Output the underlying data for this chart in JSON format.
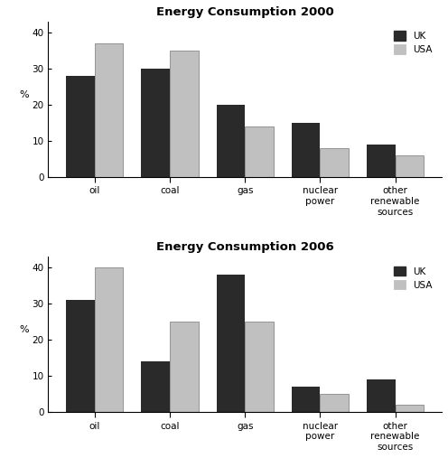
{
  "chart2000": {
    "title": "Energy Consumption 2000",
    "categories": [
      "oil",
      "coal",
      "gas",
      "nuclear\npower",
      "other\nrenewable\nsources"
    ],
    "uk": [
      28,
      30,
      20,
      15,
      9
    ],
    "usa": [
      37,
      35,
      14,
      8,
      6
    ]
  },
  "chart2006": {
    "title": "Energy Consumption 2006",
    "categories": [
      "oil",
      "coal",
      "gas",
      "nuclear\npower",
      "other\nrenewable\nsources"
    ],
    "uk": [
      31,
      14,
      38,
      7,
      9
    ],
    "usa": [
      40,
      25,
      25,
      5,
      2
    ]
  },
  "uk_color": "#2a2a2a",
  "usa_color": "#c0c0c0",
  "usa_edge_color": "#888888",
  "ylabel": "%",
  "ylim": [
    0,
    43
  ],
  "yticks": [
    0,
    10,
    20,
    30,
    40
  ],
  "bar_width": 0.38,
  "legend_labels": [
    "UK",
    "USA"
  ],
  "title_fontsize": 9.5,
  "tick_fontsize": 7.5,
  "label_fontsize": 8,
  "bg_color": "#ffffff"
}
